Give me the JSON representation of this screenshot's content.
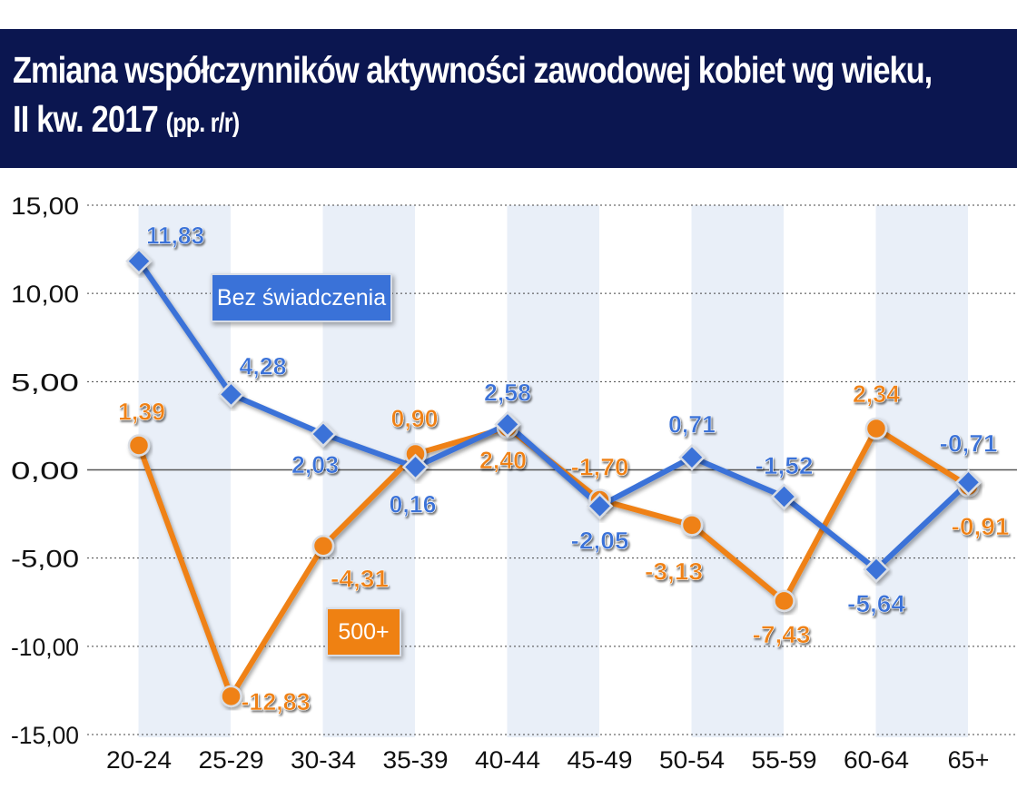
{
  "title": {
    "line1": "Zmiana współczynników aktywności zawodowej kobiet wg wieku,",
    "line2": "II kw. 2017",
    "unit": "(pp. r/r)"
  },
  "colors": {
    "header_bg": "#0b1650",
    "series_blue": "#3a72d8",
    "series_orange": "#ef8112",
    "band": "#e9eff8",
    "zero_line": "#555555",
    "grid": "#444444"
  },
  "chart_data": {
    "type": "line",
    "title": "Zmiana współczynników aktywności zawodowej kobiet wg wieku, II kw. 2017 (pp. r/r)",
    "categories": [
      "20-24",
      "25-29",
      "30-34",
      "35-39",
      "40-44",
      "45-49",
      "50-54",
      "55-59",
      "60-64",
      "65+"
    ],
    "ylim": [
      -15,
      15
    ],
    "yticks": [
      "15,00",
      "10,00",
      "5,00",
      "0,00",
      "-5,00",
      "-10,00",
      "-15,00"
    ],
    "ytick_values": [
      15,
      10,
      5,
      0,
      -5,
      -10,
      -15
    ],
    "grid": "dotted horizontal",
    "series": [
      {
        "name": "Bez świadczenia",
        "color": "#3a72d8",
        "marker": "diamond",
        "values": [
          11.83,
          4.28,
          2.03,
          0.16,
          2.58,
          -2.05,
          0.71,
          -1.52,
          -5.64,
          -0.71
        ],
        "labels": [
          "11,83",
          "4,28",
          "2,03",
          "0,16",
          "2,58",
          "-2,05",
          "0,71",
          "-1,52",
          "-5,64",
          "-0,71"
        ]
      },
      {
        "name": "500+",
        "color": "#ef8112",
        "marker": "circle",
        "values": [
          1.39,
          -12.83,
          -4.31,
          0.9,
          2.4,
          -1.7,
          -3.13,
          -7.43,
          2.34,
          -0.91
        ],
        "labels": [
          "1,39",
          "-12,83",
          "-4,31",
          "0,90",
          "2,40",
          "-1,70",
          "-3,13",
          "-7,43",
          "2,34",
          "-0,91"
        ]
      }
    ],
    "legend": [
      "Bez świadczenia",
      "500+"
    ]
  }
}
